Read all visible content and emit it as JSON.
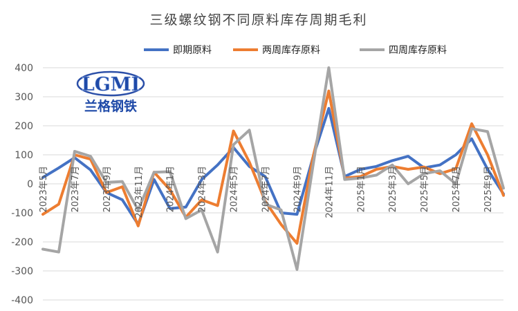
{
  "chart_data": {
    "type": "line",
    "title": "三级螺纹钢不同原料库存周期毛利",
    "ylim": [
      -400,
      400
    ],
    "yticks": [
      400,
      300,
      200,
      100,
      0,
      -100,
      -200,
      -300,
      -400
    ],
    "xticklabels": [
      "2023年5月",
      "2023年7月",
      "2023年9月",
      "2023年11月",
      "2024年1月",
      "2024年3月",
      "2024年5月",
      "2024年7月",
      "2024年9月",
      "2024年11月",
      "2025年1月",
      "2025年3月",
      "2025年5月",
      "2025年7月",
      "2025年9月"
    ],
    "grid": true,
    "legend_position": "top",
    "series": [
      {
        "name": "即期原料",
        "color": "#4472C4",
        "values": [
          22,
          55,
          90,
          48,
          -30,
          -55,
          -140,
          15,
          -85,
          -80,
          15,
          65,
          125,
          60,
          25,
          -100,
          -105,
          90,
          260,
          25,
          50,
          60,
          80,
          95,
          55,
          65,
          100,
          155,
          50,
          -35
        ]
      },
      {
        "name": "两周库存原料",
        "color": "#ED7D31",
        "values": [
          -105,
          -70,
          100,
          85,
          -30,
          -10,
          -145,
          40,
          -20,
          -115,
          -55,
          -75,
          182,
          75,
          -60,
          -140,
          -205,
          90,
          320,
          20,
          25,
          50,
          60,
          50,
          58,
          35,
          52,
          207,
          100,
          -40
        ]
      },
      {
        "name": "四周库存原料",
        "color": "#A5A5A5",
        "values": [
          -225,
          -235,
          112,
          95,
          5,
          8,
          -90,
          40,
          42,
          -120,
          -90,
          -235,
          135,
          185,
          -70,
          -90,
          -295,
          60,
          400,
          15,
          20,
          30,
          65,
          0,
          35,
          45,
          0,
          190,
          180,
          -15
        ]
      }
    ]
  },
  "logo": {
    "initials": "LGMI",
    "name": "兰格钢铁"
  }
}
